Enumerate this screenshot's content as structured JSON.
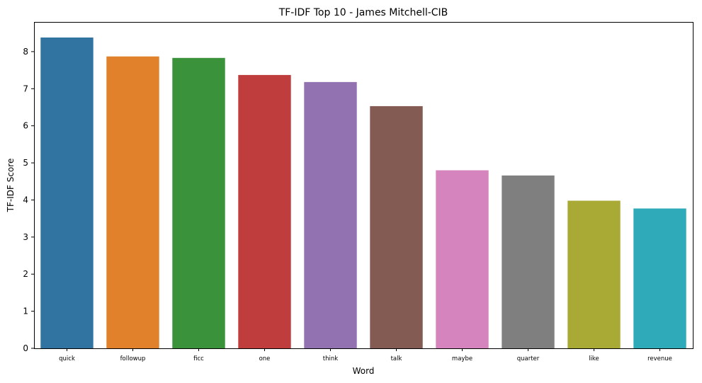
{
  "chart_data": {
    "type": "bar",
    "title": "TF-IDF Top 10 - James Mitchell-CIB",
    "xlabel": "Word",
    "ylabel": "TF-IDF Score",
    "ylim": [
      0,
      8.8
    ],
    "yticks": [
      0,
      1,
      2,
      3,
      4,
      5,
      6,
      7,
      8
    ],
    "grid": false,
    "categories": [
      "quick",
      "followup",
      "ficc",
      "one",
      "think",
      "talk",
      "maybe",
      "quarter",
      "like",
      "revenue"
    ],
    "values": [
      8.38,
      7.87,
      7.83,
      7.37,
      7.18,
      6.53,
      4.8,
      4.66,
      3.98,
      3.77
    ],
    "colors": [
      "#3274a1",
      "#e1812c",
      "#3a923a",
      "#c03d3e",
      "#9372b2",
      "#845b53",
      "#d684bd",
      "#7f7f7f",
      "#a9aa35",
      "#2eaab8"
    ]
  }
}
